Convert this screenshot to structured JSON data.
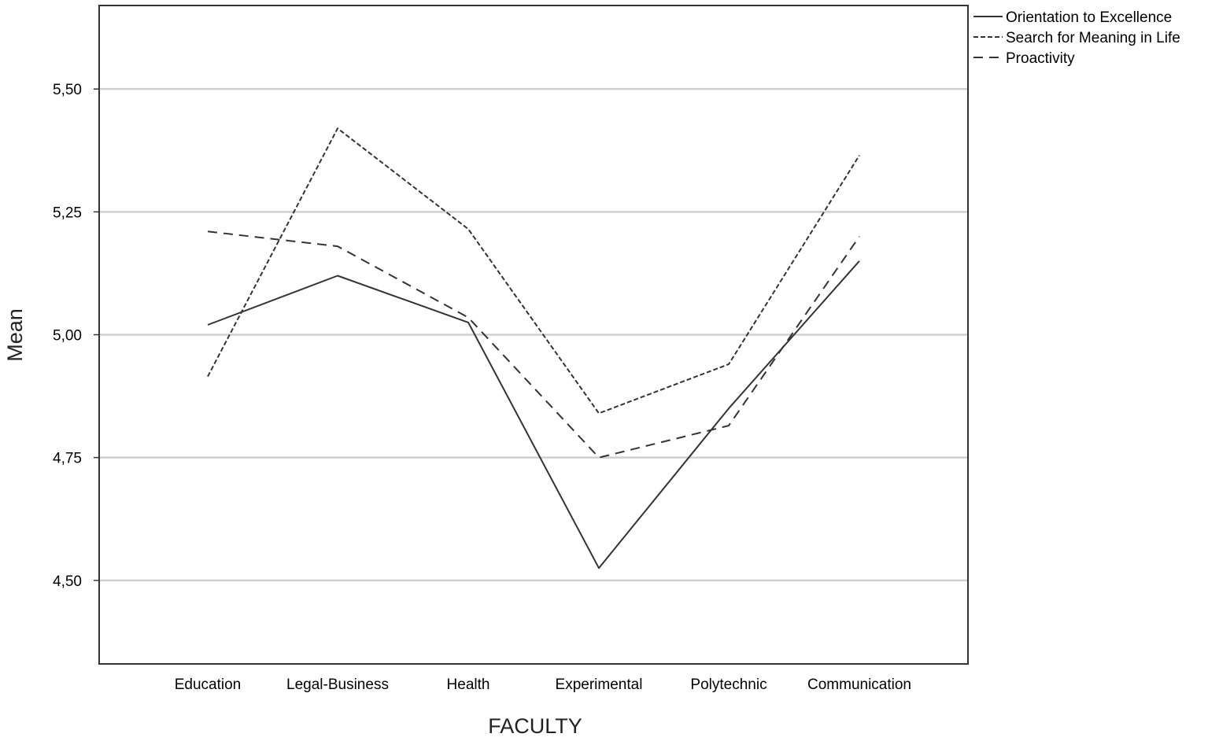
{
  "chart_data": {
    "type": "line",
    "title": "",
    "xlabel": "FACULTY",
    "ylabel": "Mean",
    "categories": [
      "Education",
      "Legal-Business",
      "Health",
      "Experimental",
      "Polytechnic",
      "Communication"
    ],
    "ylim": [
      4.33,
      5.67
    ],
    "yticks": [
      "4,50",
      "4,75",
      "5,00",
      "5,25",
      "5,50"
    ],
    "ytick_values": [
      4.5,
      4.75,
      5.0,
      5.25,
      5.5
    ],
    "grid": true,
    "legend_position": "top-right",
    "series": [
      {
        "name": "Orientation to Excellence",
        "style": "solid",
        "values": [
          5.02,
          5.12,
          5.025,
          4.525,
          4.85,
          5.15
        ]
      },
      {
        "name": "Search for Meaning in Life",
        "style": "dashed-fine",
        "values": [
          4.915,
          5.42,
          5.215,
          4.84,
          4.94,
          5.365
        ]
      },
      {
        "name": "Proactivity",
        "style": "dashed",
        "values": [
          5.21,
          5.18,
          5.035,
          4.75,
          4.815,
          5.2
        ]
      }
    ],
    "colors": {
      "line": "#333333",
      "grid": "#cfcfcf",
      "frame": "#333333"
    }
  }
}
